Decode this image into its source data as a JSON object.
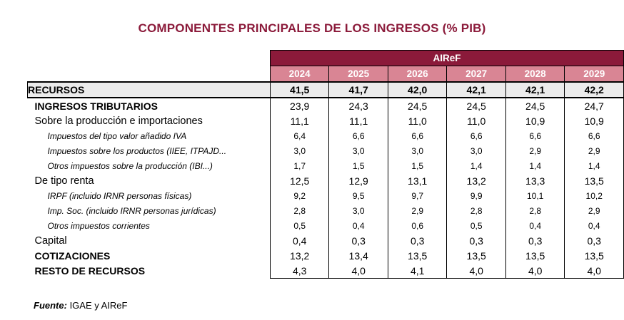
{
  "title": "COMPONENTES PRINCIPALES DE LOS INGRESOS (% PIB)",
  "brand": "AIReF",
  "years": [
    "2024",
    "2025",
    "2026",
    "2027",
    "2028",
    "2029"
  ],
  "rows": [
    {
      "label": "RECURSOS",
      "values": [
        "41,5",
        "41,7",
        "42,0",
        "42,1",
        "42,1",
        "42,2"
      ]
    },
    {
      "label": "INGRESOS TRIBUTARIOS",
      "values": [
        "23,9",
        "24,3",
        "24,5",
        "24,5",
        "24,5",
        "24,7"
      ]
    },
    {
      "label": "Sobre la producción e importaciones",
      "values": [
        "11,1",
        "11,1",
        "11,0",
        "11,0",
        "10,9",
        "10,9"
      ]
    },
    {
      "label": "Impuestos del tipo valor añadido IVA",
      "values": [
        "6,4",
        "6,6",
        "6,6",
        "6,6",
        "6,6",
        "6,6"
      ]
    },
    {
      "label": "Impuestos sobre los productos (IIEE, ITPAJD...",
      "values": [
        "3,0",
        "3,0",
        "3,0",
        "3,0",
        "2,9",
        "2,9"
      ]
    },
    {
      "label": "Otros impuestos sobre la producción (IBI...)",
      "values": [
        "1,7",
        "1,5",
        "1,5",
        "1,4",
        "1,4",
        "1,4"
      ]
    },
    {
      "label": "De tipo renta",
      "values": [
        "12,5",
        "12,9",
        "13,1",
        "13,2",
        "13,3",
        "13,5"
      ]
    },
    {
      "label": "IRPF (incluido IRNR personas físicas)",
      "values": [
        "9,2",
        "9,5",
        "9,7",
        "9,9",
        "10,1",
        "10,2"
      ]
    },
    {
      "label": "Imp. Soc. (incluido IRNR personas jurídicas)",
      "values": [
        "2,8",
        "3,0",
        "2,9",
        "2,8",
        "2,8",
        "2,9"
      ]
    },
    {
      "label": "Otros impuestos corrientes",
      "values": [
        "0,5",
        "0,4",
        "0,6",
        "0,5",
        "0,4",
        "0,4"
      ]
    },
    {
      "label": "Capital",
      "values": [
        "0,4",
        "0,3",
        "0,3",
        "0,3",
        "0,3",
        "0,3"
      ]
    },
    {
      "label": "COTIZACIONES",
      "values": [
        "13,2",
        "13,4",
        "13,5",
        "13,5",
        "13,5",
        "13,5"
      ]
    },
    {
      "label": "RESTO DE RECURSOS",
      "values": [
        "4,3",
        "4,0",
        "4,1",
        "4,0",
        "4,0",
        "4,0"
      ]
    }
  ],
  "source": {
    "label": "Fuente:",
    "text": " IGAE y AIReF"
  }
}
